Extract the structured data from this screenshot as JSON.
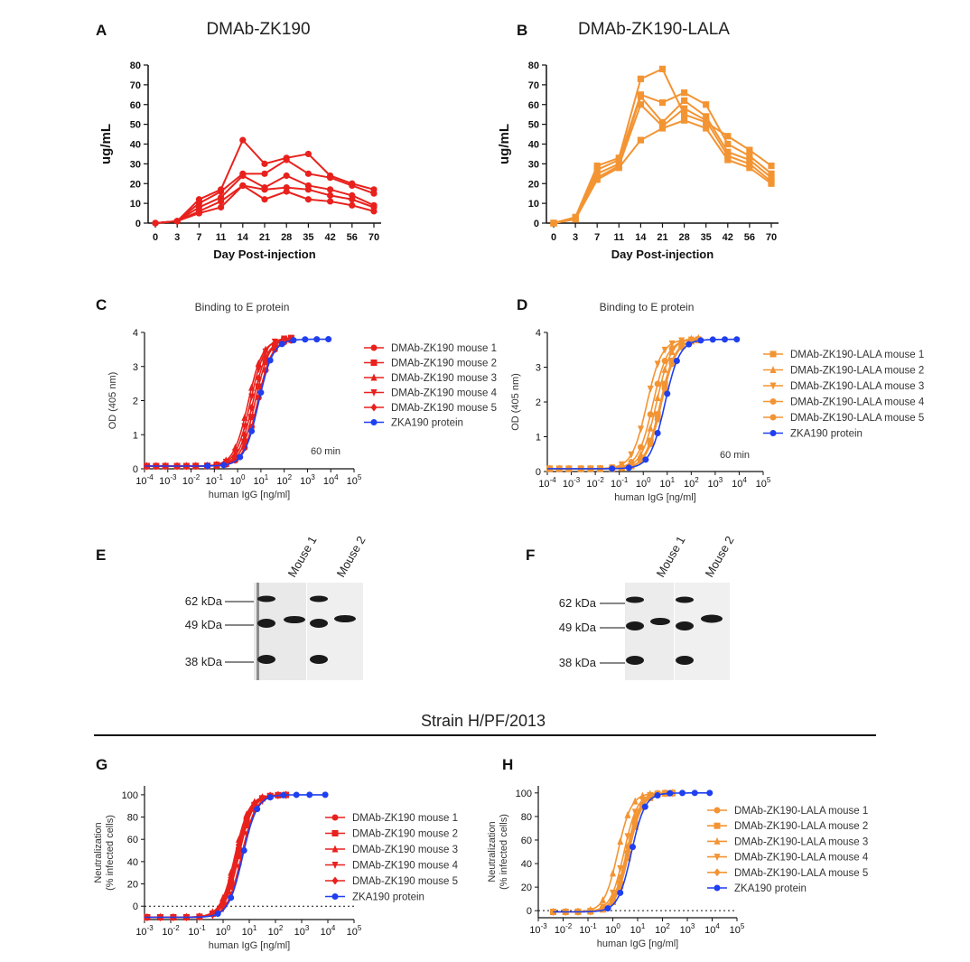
{
  "colors": {
    "red": "#e8211d",
    "orange": "#f39433",
    "blue": "#1f3ff0"
  },
  "panels": {
    "A": {
      "letter": "A",
      "title": "DMAb-ZK190"
    },
    "B": {
      "letter": "B",
      "title": "DMAb-ZK190-LALA"
    },
    "C": {
      "letter": "C",
      "title": "Binding to E protein",
      "annotation": "60 min"
    },
    "D": {
      "letter": "D",
      "title": "Binding to E protein",
      "annotation": "60 min"
    },
    "E": {
      "letter": "E"
    },
    "F": {
      "letter": "F"
    },
    "G": {
      "letter": "G"
    },
    "H": {
      "letter": "H"
    }
  },
  "strain_title": "Strain H/PF/2013",
  "western_blot": {
    "markers": [
      "62 kDa",
      "49 kDa",
      "38 kDa"
    ],
    "lanes": [
      "Mouse 1",
      "Mouse 2"
    ]
  },
  "chart_data": [
    {
      "id": "A",
      "type": "line",
      "title": "DMAb-ZK190",
      "xlabel": "Day Post-injection",
      "ylabel": "ug/mL",
      "categories": [
        "0",
        "3",
        "7",
        "11",
        "14",
        "21",
        "28",
        "35",
        "42",
        "56",
        "70"
      ],
      "yticks": [
        "0",
        "10",
        "20",
        "30",
        "40",
        "50",
        "60",
        "70",
        "80"
      ],
      "ylim": [
        0,
        80
      ],
      "series": [
        {
          "name": "mouse 1",
          "values": [
            0,
            1,
            12,
            17,
            42,
            30,
            33,
            35,
            24,
            20,
            17
          ]
        },
        {
          "name": "mouse 2",
          "values": [
            0,
            1,
            10,
            16,
            25,
            25,
            32,
            25,
            23,
            19,
            15
          ]
        },
        {
          "name": "mouse 3",
          "values": [
            0,
            1,
            8,
            13,
            24,
            18,
            24,
            19,
            17,
            14,
            9
          ]
        },
        {
          "name": "mouse 4",
          "values": [
            0,
            1,
            6,
            11,
            19,
            17,
            18,
            17,
            14,
            12,
            8
          ]
        },
        {
          "name": "mouse 5",
          "values": [
            0,
            1,
            5,
            8,
            19,
            12,
            16,
            12,
            11,
            9,
            6
          ]
        }
      ]
    },
    {
      "id": "B",
      "type": "line",
      "title": "DMAb-ZK190-LALA",
      "xlabel": "Day Post-injection",
      "ylabel": "ug/mL",
      "categories": [
        "0",
        "3",
        "7",
        "11",
        "14",
        "21",
        "28",
        "35",
        "42",
        "56",
        "70"
      ],
      "yticks": [
        "0",
        "10",
        "20",
        "30",
        "40",
        "50",
        "60",
        "70",
        "80"
      ],
      "ylim": [
        0,
        80
      ],
      "series": [
        {
          "name": "mouse 1",
          "values": [
            0,
            3,
            29,
            33,
            73,
            78,
            55,
            51,
            44,
            37,
            29
          ]
        },
        {
          "name": "mouse 2",
          "values": [
            0,
            3,
            27,
            32,
            65,
            61,
            66,
            60,
            40,
            34,
            25
          ]
        },
        {
          "name": "mouse 3",
          "values": [
            0,
            2,
            25,
            30,
            64,
            51,
            62,
            54,
            36,
            32,
            23
          ]
        },
        {
          "name": "mouse 4",
          "values": [
            0,
            2,
            23,
            29,
            60,
            49,
            58,
            52,
            34,
            30,
            21
          ]
        },
        {
          "name": "mouse 5",
          "values": [
            0,
            2,
            22,
            28,
            42,
            48,
            52,
            48,
            32,
            28,
            20
          ]
        }
      ]
    },
    {
      "id": "C",
      "type": "scatter",
      "title": "Binding to E protein",
      "xlabel": "human IgG [ng/ml]",
      "ylabel": "OD (405 nm)",
      "xticks": [
        "10-4",
        "10-3",
        "10-2",
        "10-1",
        "100",
        "101",
        "102",
        "103",
        "104",
        "105"
      ],
      "yticks": [
        "0",
        "1",
        "2",
        "3",
        "4"
      ],
      "xlim_log10": [
        -4,
        5
      ],
      "ylim": [
        0,
        4
      ],
      "annotation": "60 min",
      "series": [
        {
          "name": "DMAb-ZK190 mouse 1",
          "marker": "circle",
          "ec50_log10": 0.85,
          "top": 3.8
        },
        {
          "name": "DMAb-ZK190 mouse 2",
          "marker": "square",
          "ec50_log10": 0.75,
          "top": 3.85
        },
        {
          "name": "DMAb-ZK190 mouse 3",
          "marker": "triangle-up",
          "ec50_log10": 0.45,
          "top": 3.8
        },
        {
          "name": "DMAb-ZK190 mouse 4",
          "marker": "triangle-down",
          "ec50_log10": 0.55,
          "top": 3.85
        },
        {
          "name": "DMAb-ZK190 mouse 5",
          "marker": "diamond",
          "ec50_log10": 0.65,
          "top": 3.8
        },
        {
          "name": "ZKA190 protein",
          "marker": "circle",
          "ec50_log10": 0.9,
          "top": 3.8
        }
      ]
    },
    {
      "id": "D",
      "type": "scatter",
      "title": "Binding to E protein",
      "xlabel": "human IgG [ng/ml]",
      "ylabel": "OD (405 nm)",
      "xticks": [
        "10-4",
        "10-3",
        "10-2",
        "10-1",
        "100",
        "101",
        "102",
        "103",
        "104",
        "105"
      ],
      "yticks": [
        "0",
        "1",
        "2",
        "3",
        "4"
      ],
      "xlim_log10": [
        -4,
        5
      ],
      "ylim": [
        0,
        4
      ],
      "annotation": "60 min",
      "series": [
        {
          "name": "DMAb-ZK190-LALA mouse 1",
          "marker": "square",
          "ec50_log10": 0.7,
          "top": 3.8
        },
        {
          "name": "DMAb-ZK190-LALA mouse 2",
          "marker": "triangle-up",
          "ec50_log10": 0.55,
          "top": 3.85
        },
        {
          "name": "DMAb-ZK190-LALA mouse 3",
          "marker": "triangle-down",
          "ec50_log10": 0.15,
          "top": 3.8
        },
        {
          "name": "DMAb-ZK190-LALA mouse 4",
          "marker": "circle",
          "ec50_log10": 0.4,
          "top": 3.8
        },
        {
          "name": "DMAb-ZK190-LALA mouse 5",
          "marker": "circle",
          "ec50_log10": 0.75,
          "top": 3.8
        },
        {
          "name": "ZKA190 protein",
          "marker": "circle",
          "ec50_log10": 0.9,
          "top": 3.8
        }
      ]
    },
    {
      "id": "G",
      "type": "scatter",
      "title": "",
      "xlabel": "human IgG [ng/ml]",
      "ylabel": "Neutralization (% infected cells)",
      "ylabel_lines": [
        "Neutralization",
        "(% infected cells)"
      ],
      "xticks": [
        "10-3",
        "10-2",
        "10-1",
        "100",
        "101",
        "102",
        "103",
        "104",
        "105"
      ],
      "yticks": [
        "0",
        "20",
        "40",
        "60",
        "80",
        "100"
      ],
      "xlim_log10": [
        -3,
        5
      ],
      "ylim": [
        -12,
        108
      ],
      "series": [
        {
          "name": "DMAb-ZK190 mouse 1",
          "marker": "circle",
          "ec50_log10": 0.6,
          "top": 100
        },
        {
          "name": "DMAb-ZK190 mouse 2",
          "marker": "square",
          "ec50_log10": 0.55,
          "top": 100
        },
        {
          "name": "DMAb-ZK190 mouse 3",
          "marker": "triangle-up",
          "ec50_log10": 0.45,
          "top": 100
        },
        {
          "name": "DMAb-ZK190 mouse 4",
          "marker": "triangle-down",
          "ec50_log10": 0.7,
          "top": 100
        },
        {
          "name": "DMAb-ZK190 mouse 5",
          "marker": "diamond",
          "ec50_log10": 0.5,
          "top": 100
        },
        {
          "name": "ZKA190 protein",
          "marker": "circle",
          "ec50_log10": 0.75,
          "top": 100
        }
      ]
    },
    {
      "id": "H",
      "type": "scatter",
      "title": "",
      "xlabel": "human IgG [ng/ml]",
      "ylabel": "Neutralization (% infected cells)",
      "ylabel_lines": [
        "Neutralization",
        "(% infected cells)"
      ],
      "xticks": [
        "10-3",
        "10-2",
        "10-1",
        "100",
        "101",
        "102",
        "103",
        "104",
        "105"
      ],
      "yticks": [
        "0",
        "20",
        "40",
        "60",
        "80",
        "100"
      ],
      "xlim_log10": [
        -3,
        5
      ],
      "ylim": [
        -6,
        106
      ],
      "series": [
        {
          "name": "DMAb-ZK190-LALA mouse 1",
          "marker": "circle",
          "ec50_log10": 0.6,
          "top": 100
        },
        {
          "name": "DMAb-ZK190-LALA mouse 2",
          "marker": "square",
          "ec50_log10": 0.65,
          "top": 100
        },
        {
          "name": "DMAb-ZK190-LALA mouse 3",
          "marker": "triangle-up",
          "ec50_log10": 0.2,
          "top": 100
        },
        {
          "name": "DMAb-ZK190-LALA mouse 4",
          "marker": "triangle-down",
          "ec50_log10": 0.45,
          "top": 100
        },
        {
          "name": "DMAb-ZK190-LALA mouse 5",
          "marker": "diamond",
          "ec50_log10": 0.55,
          "top": 100
        },
        {
          "name": "ZKA190 protein",
          "marker": "circle",
          "ec50_log10": 0.75,
          "top": 100
        }
      ]
    }
  ]
}
